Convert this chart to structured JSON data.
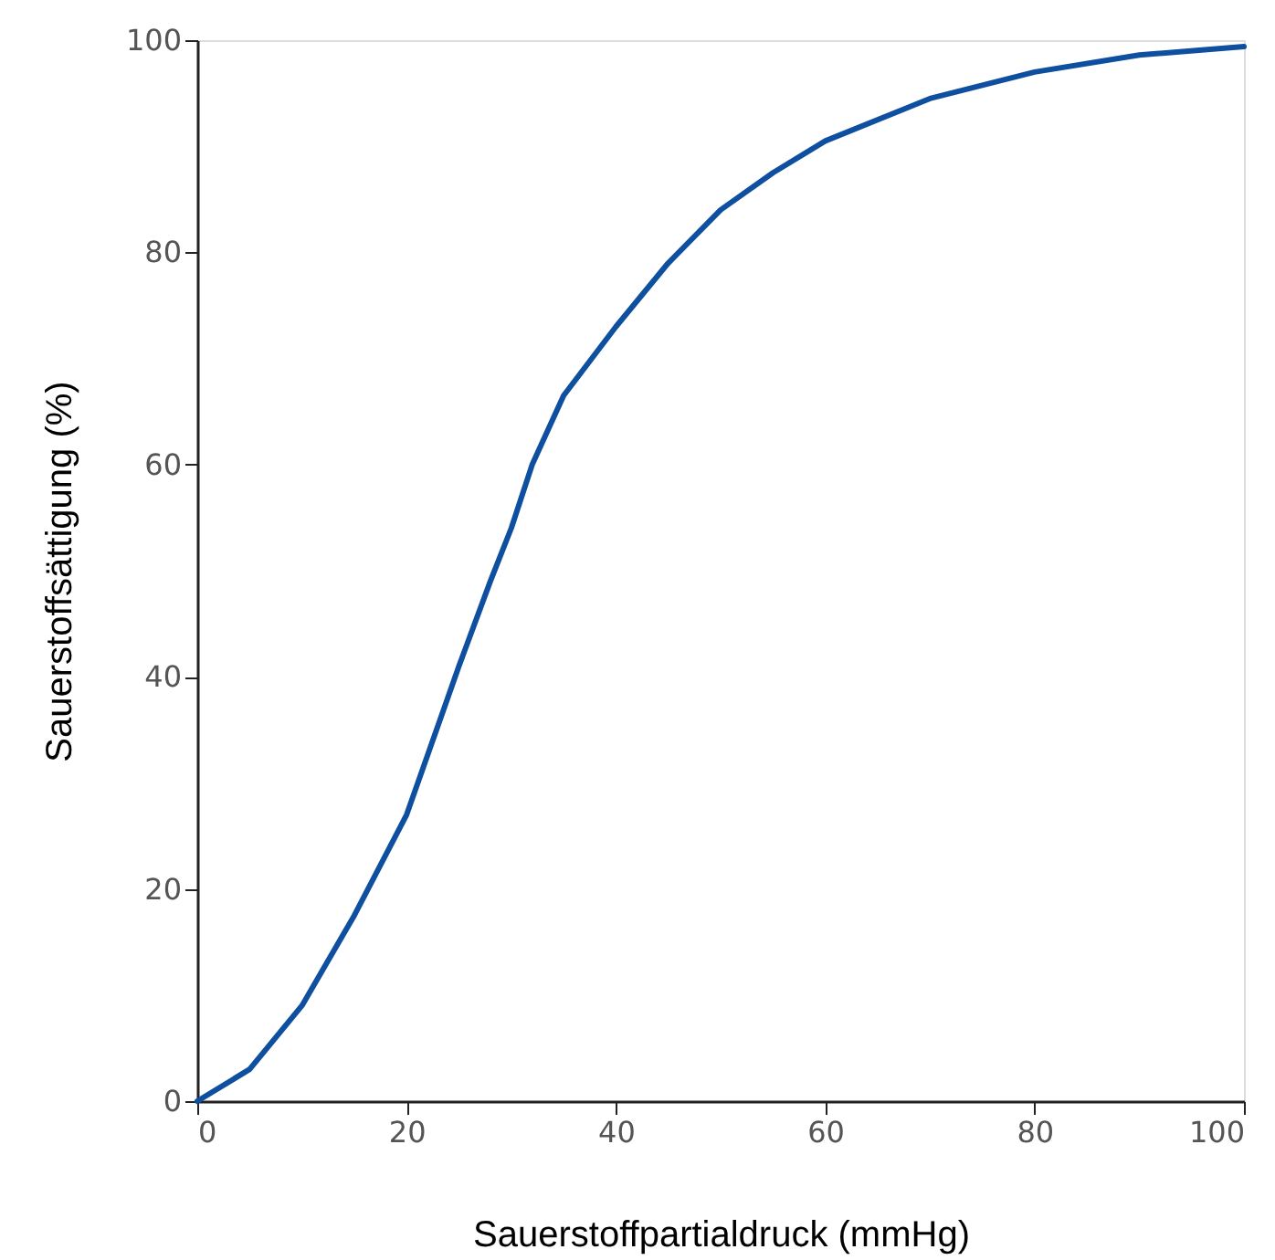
{
  "chart_data": {
    "type": "line",
    "xlabel": "Sauerstoffpartialdruck (mmHg)",
    "ylabel": "Sauerstoffsättigung (%)",
    "x": [
      0,
      5,
      10,
      15,
      20,
      25,
      28,
      30,
      32,
      35,
      40,
      45,
      50,
      55,
      60,
      70,
      80,
      90,
      100
    ],
    "series": [
      {
        "color": "#0f4fa0",
        "values": [
          0,
          3,
          9,
          17.5,
          27,
          41,
          49,
          54,
          60,
          66.5,
          73,
          79,
          84,
          87.5,
          90.5,
          94.5,
          97,
          98.6,
          99.4
        ]
      }
    ],
    "xlim": [
      0,
      100
    ],
    "ylim": [
      0,
      100
    ],
    "xticks": [
      0,
      20,
      40,
      60,
      80,
      100
    ],
    "yticks": [
      0,
      20,
      40,
      60,
      80,
      100
    ],
    "grid": false,
    "legend": false,
    "marker": "none",
    "line_style": "solid"
  }
}
